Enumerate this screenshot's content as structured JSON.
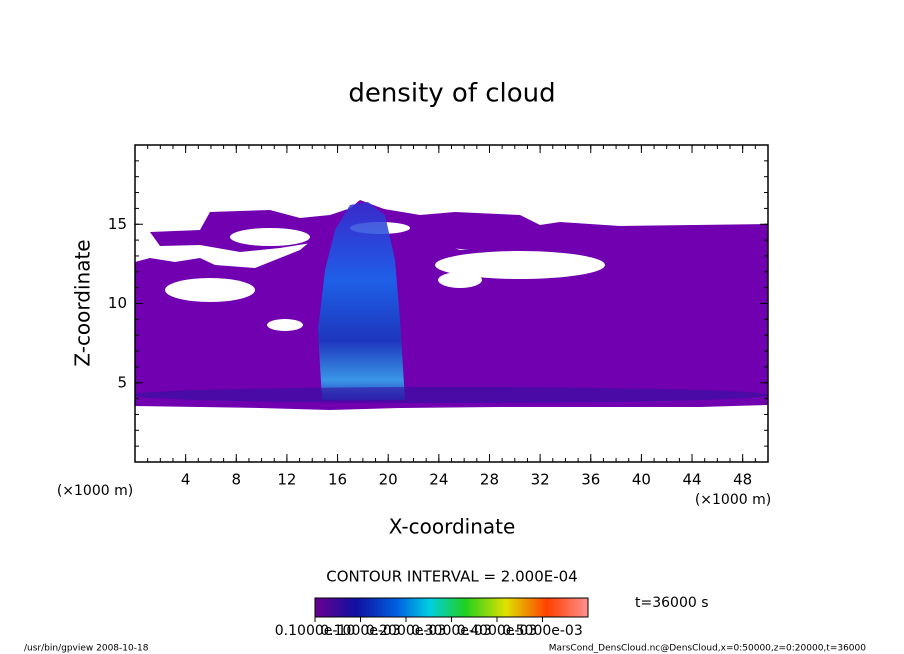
{
  "chart_data": {
    "type": "contour",
    "title": "density of cloud",
    "x_label": "X-coordinate",
    "y_label": "Z-coordinate",
    "x_unit": "(×1000 m)",
    "y_unit": "(×1000 m)",
    "xlim": [
      0,
      50
    ],
    "xticks": [
      4,
      8,
      12,
      16,
      20,
      24,
      28,
      32,
      36,
      40,
      44,
      48
    ],
    "ylim": [
      0,
      20
    ],
    "yticks": [
      5,
      10,
      15
    ],
    "contour_interval": "CONTOUR INTERVAL = 2.000E-04",
    "time": "t=36000 s",
    "clim": [
      0,
      0.0006
    ],
    "colorbar_ticks": [
      {
        "value": 1e-11,
        "label": "0.1000e-10"
      },
      {
        "value": 0.0001,
        "label": "0.1000e-03"
      },
      {
        "value": 0.0002,
        "label": "0.2000e-03"
      },
      {
        "value": 0.0003,
        "label": "0.3000e-03"
      },
      {
        "value": 0.0004,
        "label": "0.4000e-03"
      },
      {
        "value": 0.0005,
        "label": "0.5000e-03"
      }
    ],
    "footer_left": "/usr/bin/gpview   2008-10-18",
    "footer_right": "MarsCond_DensCloud.nc@DensCloud,x=0:50000,z=0:20000,t=36000"
  }
}
